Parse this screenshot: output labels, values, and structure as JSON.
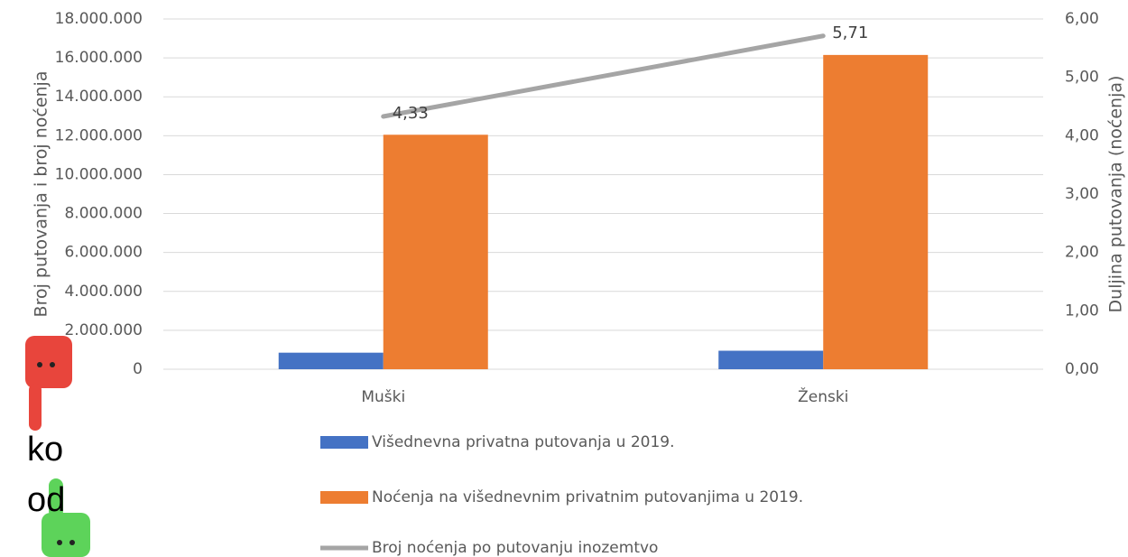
{
  "chart_data": {
    "type": "bar-line",
    "categories": [
      "Muški",
      "Ženski"
    ],
    "series": [
      {
        "name": "Višednevna privatna putovanja u 2019.",
        "color": "#4472c4",
        "type": "bar",
        "values": [
          850000,
          950000
        ]
      },
      {
        "name": "Noćenja na višednevnim privatnim putovanjima u 2019.",
        "color": "#ed7d31",
        "type": "bar",
        "values": [
          12050000,
          16150000
        ]
      },
      {
        "name": "Broj noćenja po putovanju inozemtvo",
        "color": "#a5a5a5",
        "type": "line",
        "axis": "y2",
        "values": [
          4.33,
          5.71
        ],
        "value_labels": [
          "4,33",
          "5,71"
        ]
      }
    ],
    "ylabel": "Broj putovanja i broj noćenja",
    "y2label": "Duljina putovanja (noćenja)",
    "ylim": [
      0,
      18000000
    ],
    "yticks": [
      0,
      {
        "value": 2000000,
        "label": "2.000.000"
      },
      {
        "value": 4000000,
        "label": "4.000.000"
      },
      {
        "value": 6000000,
        "label": "6.000.000"
      },
      {
        "value": 8000000,
        "label": "8.000.000"
      },
      {
        "value": 10000000,
        "label": "10.000.000"
      },
      {
        "value": 12000000,
        "label": "12.000.000"
      },
      {
        "value": 14000000,
        "label": "14.000.000"
      },
      {
        "value": 16000000,
        "label": "16.000.000"
      },
      {
        "value": 18000000,
        "label": "18.000.000"
      }
    ],
    "y2lim": [
      0,
      6
    ],
    "y2ticks": [
      {
        "value": 0,
        "label": "0,00"
      },
      {
        "value": 1,
        "label": "1,00"
      },
      {
        "value": 2,
        "label": "2,00"
      },
      {
        "value": 3,
        "label": "3,00"
      },
      {
        "value": 4,
        "label": "4,00"
      },
      {
        "value": 5,
        "label": "5,00"
      },
      {
        "value": 6,
        "label": "6,00"
      }
    ],
    "grid": true,
    "legend": "bottom"
  },
  "overlay_texts": [
    "ko",
    "od"
  ]
}
